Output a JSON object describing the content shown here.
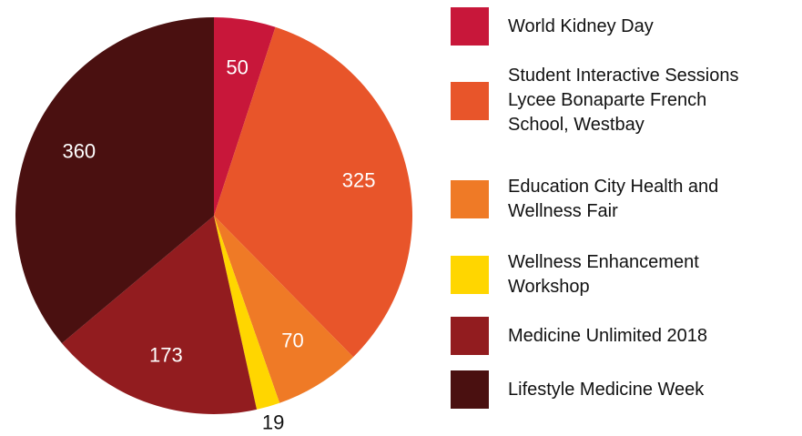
{
  "chart_data": {
    "type": "pie",
    "categories": [
      "World Kidney Day",
      "Student Interactive Sessions Lycee Bonaparte French School, Westbay",
      "Education City Health and Wellness Fair",
      "Wellness Enhancement Workshop",
      "Medicine Unlimited 2018",
      "Lifestyle Medicine Week"
    ],
    "values": [
      50,
      325,
      70,
      19,
      173,
      360
    ],
    "colors": [
      "#c8173a",
      "#e8552a",
      "#ef7a26",
      "#ffd600",
      "#921c1f",
      "#4a1010"
    ],
    "legend": "right"
  }
}
